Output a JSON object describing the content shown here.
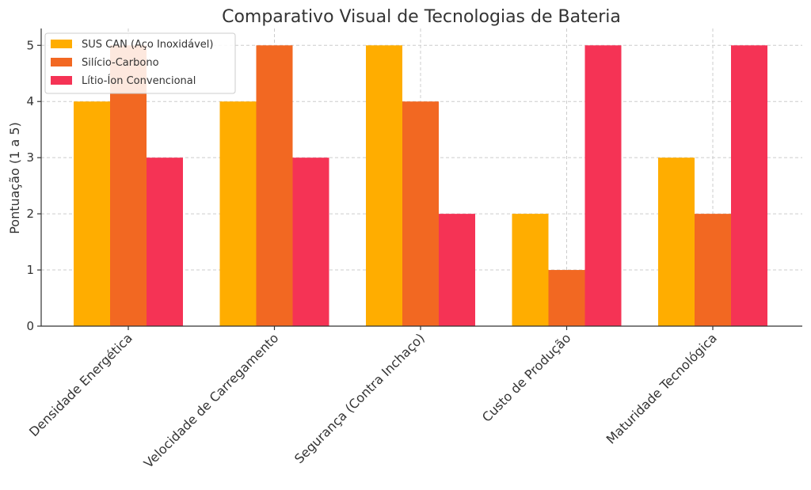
{
  "chart_data": {
    "type": "bar",
    "title": "Comparativo Visual de Tecnologias de Bateria",
    "xlabel": "",
    "ylabel": "Pontuação (1 a 5)",
    "ylim": [
      0,
      5.3
    ],
    "yticks": [
      0,
      1,
      2,
      3,
      4,
      5
    ],
    "grid": true,
    "legend_position": "top-left",
    "categories": [
      "Densidade Energética",
      "Velocidade de Carregamento",
      "Segurança (Contra Inchaço)",
      "Custo de Produção",
      "Maturidade Tecnológica"
    ],
    "series": [
      {
        "name": "SUS CAN (Aço Inoxidável)",
        "color": "#FFAD00",
        "values": [
          4,
          4,
          5,
          2,
          3
        ]
      },
      {
        "name": "Silício-Carbono",
        "color": "#F26822",
        "values": [
          5,
          5,
          4,
          1,
          2
        ]
      },
      {
        "name": "Lítio-Íon Convencional",
        "color": "#F53355",
        "values": [
          3,
          3,
          2,
          5,
          5
        ]
      }
    ]
  }
}
